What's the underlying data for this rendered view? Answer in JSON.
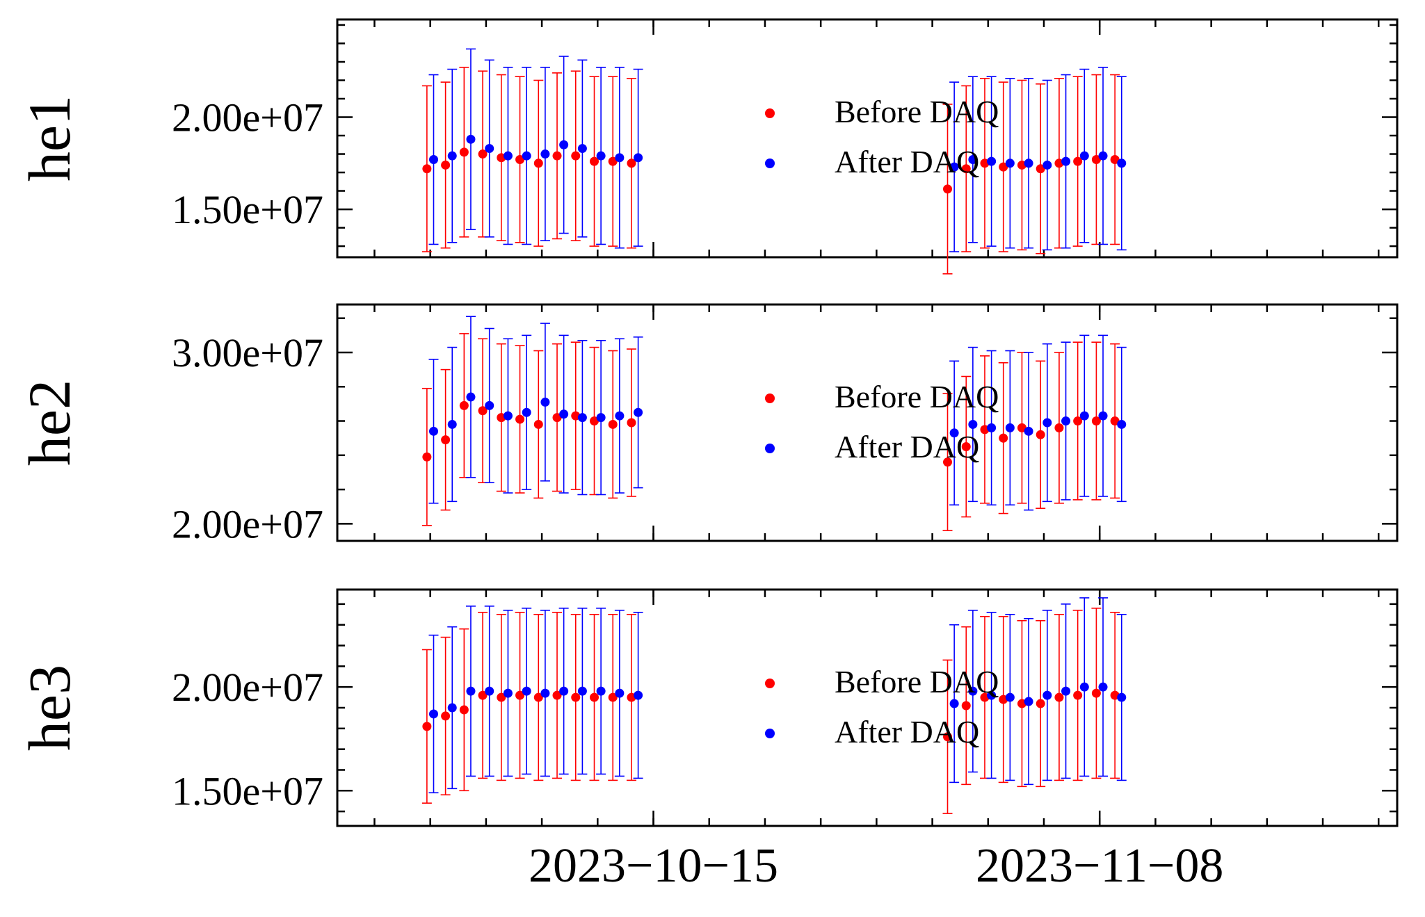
{
  "chart_data": {
    "type": "scatter",
    "x_dates": [
      "2023-10-03",
      "2023-10-04",
      "2023-10-05",
      "2023-10-06",
      "2023-10-07",
      "2023-10-08",
      "2023-10-09",
      "2023-10-10",
      "2023-10-11",
      "2023-10-12",
      "2023-10-13",
      "2023-10-14",
      "2023-10-15",
      "2023-10-16",
      "2023-10-17",
      "2023-10-18",
      "2023-10-19",
      "2023-10-20",
      "2023-10-21",
      "2023-10-22",
      "2023-10-23",
      "2023-10-24",
      "2023-10-25",
      "2023-10-26",
      "2023-10-27",
      "2023-10-28",
      "2023-10-29",
      "2023-10-30",
      "2023-10-31",
      "2023-11-01",
      "2023-11-02",
      "2023-11-03",
      "2023-11-04",
      "2023-11-05",
      "2023-11-06",
      "2023-11-07",
      "2023-11-08",
      "2023-11-09",
      "2023-11-10",
      "2023-11-11",
      "2023-11-12",
      "2023-11-13",
      "2023-11-14",
      "2023-11-15",
      "2023-11-16"
    ],
    "x_range": [
      "2023-09-28",
      "2023-11-24"
    ],
    "x_tick_labels": [
      "2023−10−15",
      "2023−11−08"
    ],
    "x_tick_dates": [
      "2023-10-15",
      "2023-11-08"
    ],
    "grid": false,
    "legend_position": "center",
    "panels": [
      {
        "ylabel": "he1",
        "ylim": [
          12.4,
          25.3
        ],
        "y_ticks": [
          15,
          20
        ],
        "y_tick_labels": [
          "1.50e+07",
          "2.00e+07"
        ],
        "series": [
          {
            "name": "Before DAQ",
            "color": "#ff0000",
            "dates": [
              "2023-10-03",
              "2023-10-04",
              "2023-10-05",
              "2023-10-06",
              "2023-10-07",
              "2023-10-08",
              "2023-10-09",
              "2023-10-10",
              "2023-10-11",
              "2023-10-12",
              "2023-10-13",
              "2023-10-14",
              "2023-10-31",
              "2023-11-01",
              "2023-11-02",
              "2023-11-03",
              "2023-11-04",
              "2023-11-05",
              "2023-11-06",
              "2023-11-07",
              "2023-11-08",
              "2023-11-09"
            ],
            "values": [
              17.2,
              17.4,
              18.1,
              18.0,
              17.8,
              17.7,
              17.5,
              17.9,
              17.9,
              17.6,
              17.6,
              17.5,
              16.1,
              17.2,
              17.5,
              17.3,
              17.4,
              17.2,
              17.5,
              17.6,
              17.7,
              17.7
            ],
            "err": [
              4.5,
              4.5,
              4.6,
              4.5,
              4.5,
              4.5,
              4.5,
              4.5,
              4.6,
              4.6,
              4.6,
              4.6,
              4.6,
              4.5,
              4.6,
              4.6,
              4.6,
              4.6,
              4.6,
              4.6,
              4.6,
              4.6
            ]
          },
          {
            "name": "After DAQ",
            "color": "#0000ff",
            "dates": [
              "2023-10-03",
              "2023-10-04",
              "2023-10-05",
              "2023-10-06",
              "2023-10-07",
              "2023-10-08",
              "2023-10-09",
              "2023-10-10",
              "2023-10-11",
              "2023-10-12",
              "2023-10-13",
              "2023-10-14",
              "2023-10-31",
              "2023-11-01",
              "2023-11-02",
              "2023-11-03",
              "2023-11-04",
              "2023-11-05",
              "2023-11-06",
              "2023-11-07",
              "2023-11-08",
              "2023-11-09"
            ],
            "values": [
              17.7,
              17.9,
              18.8,
              18.3,
              17.9,
              17.9,
              18.0,
              18.5,
              18.3,
              17.9,
              17.8,
              17.8,
              17.3,
              17.7,
              17.6,
              17.5,
              17.5,
              17.4,
              17.6,
              17.9,
              17.9,
              17.5
            ],
            "err": [
              4.6,
              4.7,
              4.9,
              4.8,
              4.8,
              4.8,
              4.7,
              4.8,
              4.8,
              4.8,
              4.9,
              4.8,
              4.6,
              4.5,
              4.6,
              4.6,
              4.6,
              4.6,
              4.7,
              4.7,
              4.8,
              4.7
            ]
          }
        ]
      },
      {
        "ylabel": "he2",
        "ylim": [
          19.0,
          32.8
        ],
        "y_ticks": [
          20,
          30
        ],
        "y_tick_labels": [
          "2.00e+07",
          "3.00e+07"
        ],
        "series": [
          {
            "name": "Before DAQ",
            "color": "#ff0000",
            "dates": [
              "2023-10-03",
              "2023-10-04",
              "2023-10-05",
              "2023-10-06",
              "2023-10-07",
              "2023-10-08",
              "2023-10-09",
              "2023-10-10",
              "2023-10-11",
              "2023-10-12",
              "2023-10-13",
              "2023-10-14",
              "2023-10-31",
              "2023-11-01",
              "2023-11-02",
              "2023-11-03",
              "2023-11-04",
              "2023-11-05",
              "2023-11-06",
              "2023-11-07",
              "2023-11-08",
              "2023-11-09"
            ],
            "values": [
              23.9,
              24.9,
              26.9,
              26.6,
              26.2,
              26.1,
              25.8,
              26.2,
              26.3,
              26.0,
              25.8,
              25.9,
              23.6,
              24.5,
              25.5,
              25.0,
              25.6,
              25.2,
              25.6,
              26.0,
              26.0,
              26.0
            ],
            "err": [
              4.0,
              4.1,
              4.2,
              4.2,
              4.3,
              4.3,
              4.3,
              4.3,
              4.3,
              4.3,
              4.3,
              4.3,
              4.0,
              4.1,
              4.3,
              4.4,
              4.4,
              4.3,
              4.4,
              4.6,
              4.6,
              4.5
            ]
          },
          {
            "name": "After DAQ",
            "color": "#0000ff",
            "dates": [
              "2023-10-03",
              "2023-10-04",
              "2023-10-05",
              "2023-10-06",
              "2023-10-07",
              "2023-10-08",
              "2023-10-09",
              "2023-10-10",
              "2023-10-11",
              "2023-10-12",
              "2023-10-13",
              "2023-10-14",
              "2023-10-31",
              "2023-11-01",
              "2023-11-02",
              "2023-11-03",
              "2023-11-04",
              "2023-11-05",
              "2023-11-06",
              "2023-11-07",
              "2023-11-08",
              "2023-11-09"
            ],
            "values": [
              25.4,
              25.8,
              27.4,
              26.9,
              26.3,
              26.5,
              27.1,
              26.4,
              26.2,
              26.2,
              26.3,
              26.5,
              25.3,
              25.8,
              25.6,
              25.6,
              25.4,
              25.9,
              26.0,
              26.3,
              26.3,
              25.8
            ],
            "err": [
              4.2,
              4.5,
              4.7,
              4.5,
              4.5,
              4.5,
              4.6,
              4.6,
              4.5,
              4.5,
              4.5,
              4.4,
              4.2,
              4.5,
              4.5,
              4.5,
              4.6,
              4.6,
              4.6,
              4.7,
              4.7,
              4.5
            ]
          }
        ]
      },
      {
        "ylabel": "he3",
        "ylim": [
          13.3,
          24.7
        ],
        "y_ticks": [
          15,
          20
        ],
        "y_tick_labels": [
          "1.50e+07",
          "2.00e+07"
        ],
        "series": [
          {
            "name": "Before DAQ",
            "color": "#ff0000",
            "dates": [
              "2023-10-03",
              "2023-10-04",
              "2023-10-05",
              "2023-10-06",
              "2023-10-07",
              "2023-10-08",
              "2023-10-09",
              "2023-10-10",
              "2023-10-11",
              "2023-10-12",
              "2023-10-13",
              "2023-10-14",
              "2023-10-31",
              "2023-11-01",
              "2023-11-02",
              "2023-11-03",
              "2023-11-04",
              "2023-11-05",
              "2023-11-06",
              "2023-11-07",
              "2023-11-08",
              "2023-11-09"
            ],
            "values": [
              18.1,
              18.6,
              18.9,
              19.6,
              19.5,
              19.6,
              19.5,
              19.6,
              19.5,
              19.5,
              19.5,
              19.5,
              17.6,
              19.1,
              19.5,
              19.4,
              19.2,
              19.2,
              19.5,
              19.6,
              19.7,
              19.6
            ],
            "err": [
              3.7,
              3.8,
              3.9,
              4.0,
              4.0,
              4.0,
              4.0,
              4.0,
              4.0,
              4.0,
              4.0,
              4.0,
              3.7,
              3.8,
              3.9,
              4.0,
              4.0,
              4.0,
              4.0,
              4.1,
              4.1,
              4.0
            ]
          },
          {
            "name": "After DAQ",
            "color": "#0000ff",
            "dates": [
              "2023-10-03",
              "2023-10-04",
              "2023-10-05",
              "2023-10-06",
              "2023-10-07",
              "2023-10-08",
              "2023-10-09",
              "2023-10-10",
              "2023-10-11",
              "2023-10-12",
              "2023-10-13",
              "2023-10-14",
              "2023-10-31",
              "2023-11-01",
              "2023-11-02",
              "2023-11-03",
              "2023-11-04",
              "2023-11-05",
              "2023-11-06",
              "2023-11-07",
              "2023-11-08",
              "2023-11-09"
            ],
            "values": [
              18.7,
              19.0,
              19.8,
              19.8,
              19.7,
              19.8,
              19.7,
              19.8,
              19.8,
              19.8,
              19.7,
              19.6,
              19.2,
              19.8,
              19.6,
              19.5,
              19.3,
              19.6,
              19.8,
              20.0,
              20.0,
              19.5
            ],
            "err": [
              3.8,
              3.9,
              4.1,
              4.1,
              4.0,
              4.0,
              4.0,
              4.0,
              4.0,
              4.0,
              4.0,
              4.0,
              3.8,
              3.9,
              4.0,
              4.0,
              4.0,
              4.1,
              4.2,
              4.3,
              4.3,
              4.0
            ]
          }
        ]
      }
    ]
  }
}
